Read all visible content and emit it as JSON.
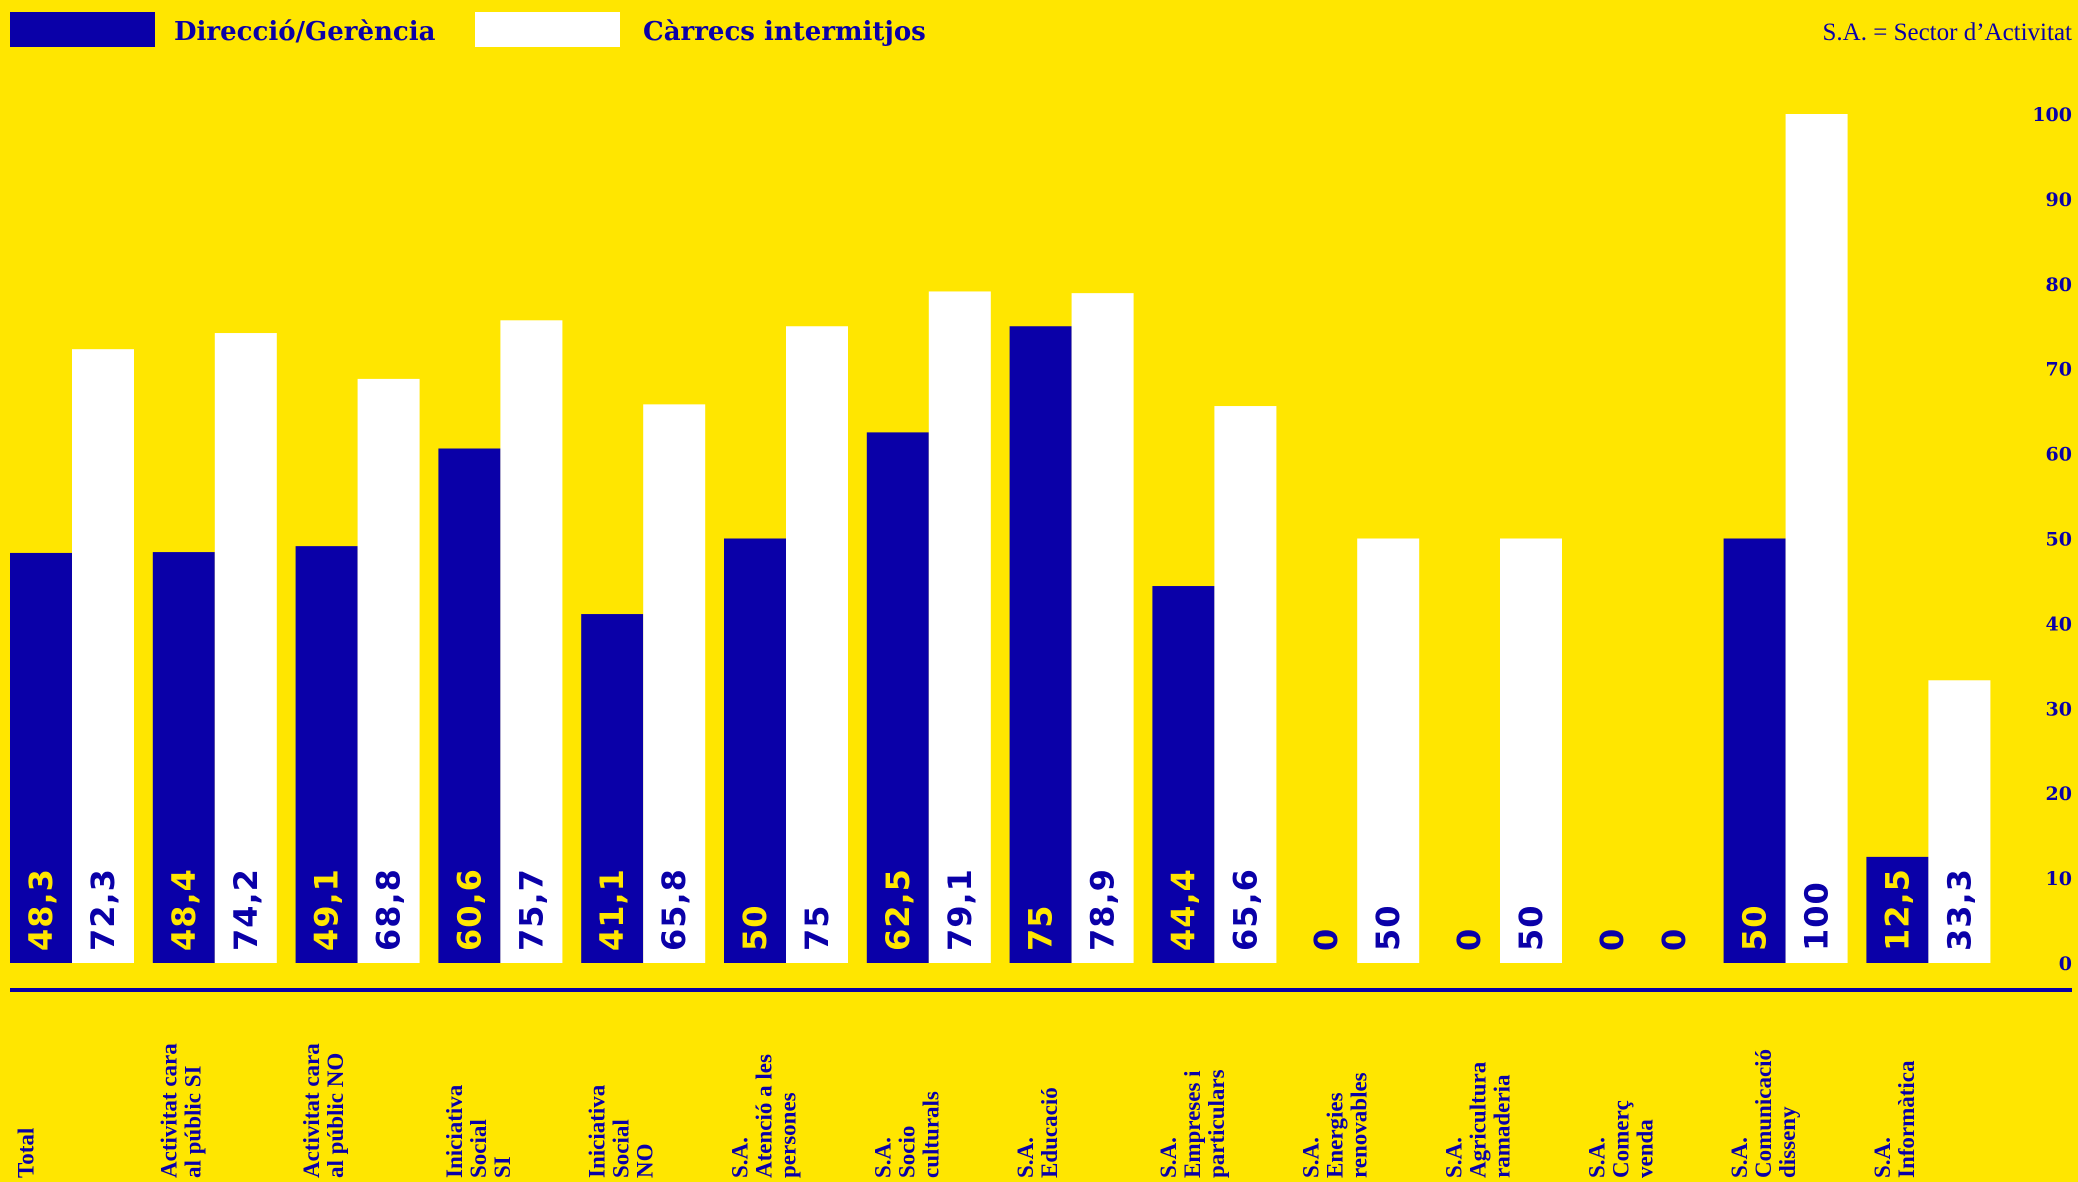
{
  "legend": {
    "items": [
      {
        "label": "Direcció/Gerència",
        "color": "#0A00A8"
      },
      {
        "label": "Càrrecs intermitjos",
        "color": "#FFFFFF"
      }
    ],
    "note": "S.A. = Sector d’Activitat"
  },
  "colors": {
    "background": "#FFE600",
    "accent": "#0A00A8",
    "white": "#FFFFFF"
  },
  "chart_data": {
    "type": "bar",
    "title": "",
    "xlabel": "",
    "ylabel": "",
    "ylim": [
      0,
      100
    ],
    "yticks": [
      0,
      10,
      20,
      30,
      40,
      50,
      60,
      70,
      80,
      90,
      100
    ],
    "grid": false,
    "legend_position": "top-left",
    "categories": [
      [
        "Total"
      ],
      [
        "Activitat cara",
        "al públic SI"
      ],
      [
        "Activitat cara",
        "al públic NO"
      ],
      [
        "Iniciativa",
        "Social",
        "SI"
      ],
      [
        "Iniciativa",
        "Social",
        "NO"
      ],
      [
        "S.A.",
        "Atenció a les",
        "persones"
      ],
      [
        "S.A.",
        "Socio",
        "culturals"
      ],
      [
        "S.A.",
        "Educació"
      ],
      [
        "S.A.",
        "Empreses i",
        "particulars"
      ],
      [
        "S.A.",
        "Energies",
        "renovables"
      ],
      [
        "S.A.",
        "Agricultura",
        "ramaderia"
      ],
      [
        "S.A.",
        "Comerç",
        "venda"
      ],
      [
        "S.A.",
        "Comunicació",
        "disseny"
      ],
      [
        "S.A.",
        "Informàtica"
      ]
    ],
    "series": [
      {
        "name": "Direcció/Gerència",
        "values": [
          48.3,
          48.4,
          49.1,
          60.6,
          41.1,
          50,
          62.5,
          75,
          44.4,
          0,
          0,
          0,
          50,
          12.5
        ],
        "labels": [
          "48,3",
          "48,4",
          "49,1",
          "60,6",
          "41,1",
          "50",
          "62,5",
          "75",
          "44,4",
          "0",
          "0",
          "0",
          "50",
          "12,5"
        ]
      },
      {
        "name": "Càrrecs intermitjos",
        "values": [
          72.3,
          74.2,
          68.8,
          75.7,
          65.8,
          75,
          79.1,
          78.9,
          65.6,
          50,
          50,
          0,
          100,
          33.3
        ],
        "labels": [
          "72,3",
          "74,2",
          "68,8",
          "75,7",
          "65,8",
          "75",
          "79,1",
          "78,9",
          "65,6",
          "50",
          "50",
          "0",
          "100",
          "33,3"
        ]
      }
    ]
  }
}
